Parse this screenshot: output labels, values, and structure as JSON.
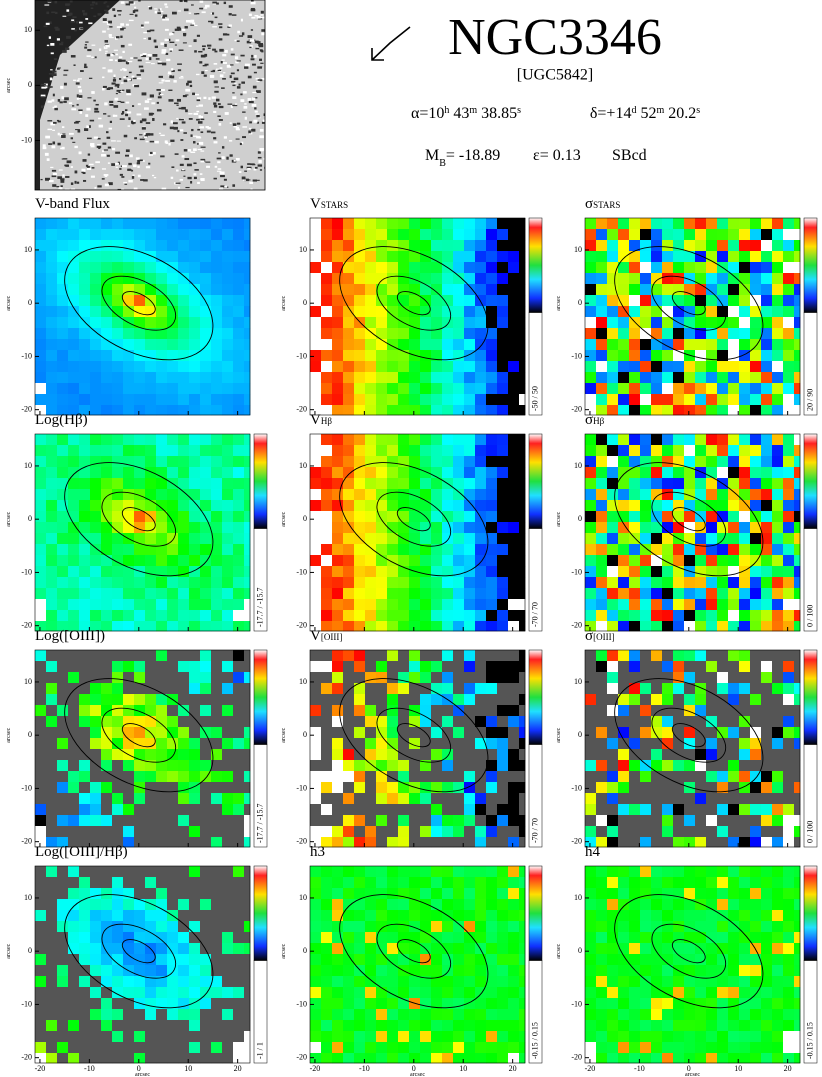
{
  "header": {
    "title": "NGC3346",
    "alt_name": "[UGC5842]",
    "ra": [
      "α=10",
      "h",
      " 43",
      "m",
      " 38.85",
      "s"
    ],
    "dec": [
      "δ=+14",
      "d",
      " 52",
      "m",
      " 20.2",
      "s"
    ],
    "mag": [
      "M",
      "B",
      "= -18.89"
    ],
    "ellipticity": "ε= 0.13",
    "morphology": "SBcd"
  },
  "image": {
    "ylim": [
      -19,
      15.5
    ],
    "yticks": [
      10,
      0,
      -10
    ],
    "ylabel": "arcsec"
  },
  "axes": {
    "xlim": [
      -21,
      22.5
    ],
    "ylim": [
      -21,
      16
    ],
    "xticks": [
      -20,
      -10,
      0,
      10,
      20
    ],
    "yticks": [
      10,
      0,
      -10,
      -20
    ],
    "xlabel": "arcsec",
    "ylabel": "arcsec"
  },
  "panels": [
    {
      "title": "V-band Flux"
    },
    {
      "title": "V",
      "title_small": "STARS",
      "cbar_label": "-50 / 50"
    },
    {
      "title": "σ",
      "title_small": "STARS",
      "cbar_label": "20 / 90"
    },
    {
      "title": "Log(Hβ)",
      "cbar_label": "-17.7 / -15.7"
    },
    {
      "title": "V",
      "title_small": "Hβ",
      "cbar_label": "-70 / 70"
    },
    {
      "title": "σ",
      "title_small": "Hβ",
      "cbar_label": "0 / 100"
    },
    {
      "title": "Log([OIII])",
      "cbar_label": "-17.7 / -15.7"
    },
    {
      "title": "V",
      "title_small": "[OIII]",
      "cbar_label": "-70 / 70"
    },
    {
      "title": "σ",
      "title_small": "[OIII]",
      "cbar_label": "0 / 100"
    },
    {
      "title": "Log([OIII]/Hβ)",
      "cbar_label": "-1 / 1"
    },
    {
      "title": "h3",
      "cbar_label": "-0.15 / 0.15"
    },
    {
      "title": "h4",
      "cbar_label": "-0.15 / 0.15"
    }
  ]
}
